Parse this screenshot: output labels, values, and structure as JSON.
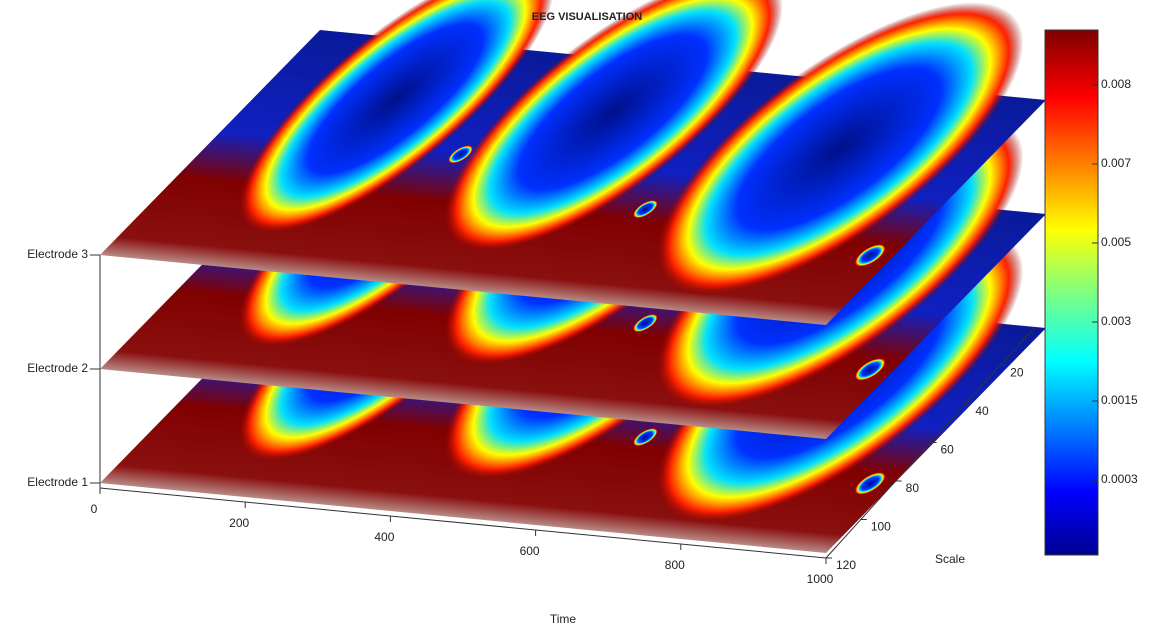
{
  "chart_data": {
    "type": "surface3d",
    "title": "EEG VISUALISATION",
    "x_label": "Time",
    "z_label": "Scale",
    "layers": [
      "Electrode 1",
      "Electrode 2",
      "Electrode 3"
    ],
    "xlim": [
      0,
      1000
    ],
    "xticks": [
      0,
      200,
      400,
      600,
      800,
      1000
    ],
    "zlim": [
      0,
      120
    ],
    "zticks": [
      20,
      40,
      60,
      80,
      100,
      120
    ],
    "colormap": "jet",
    "colorbar": {
      "ticks": [
        0.0003,
        0.0015,
        0.003,
        0.005,
        0.007,
        0.008
      ]
    }
  }
}
